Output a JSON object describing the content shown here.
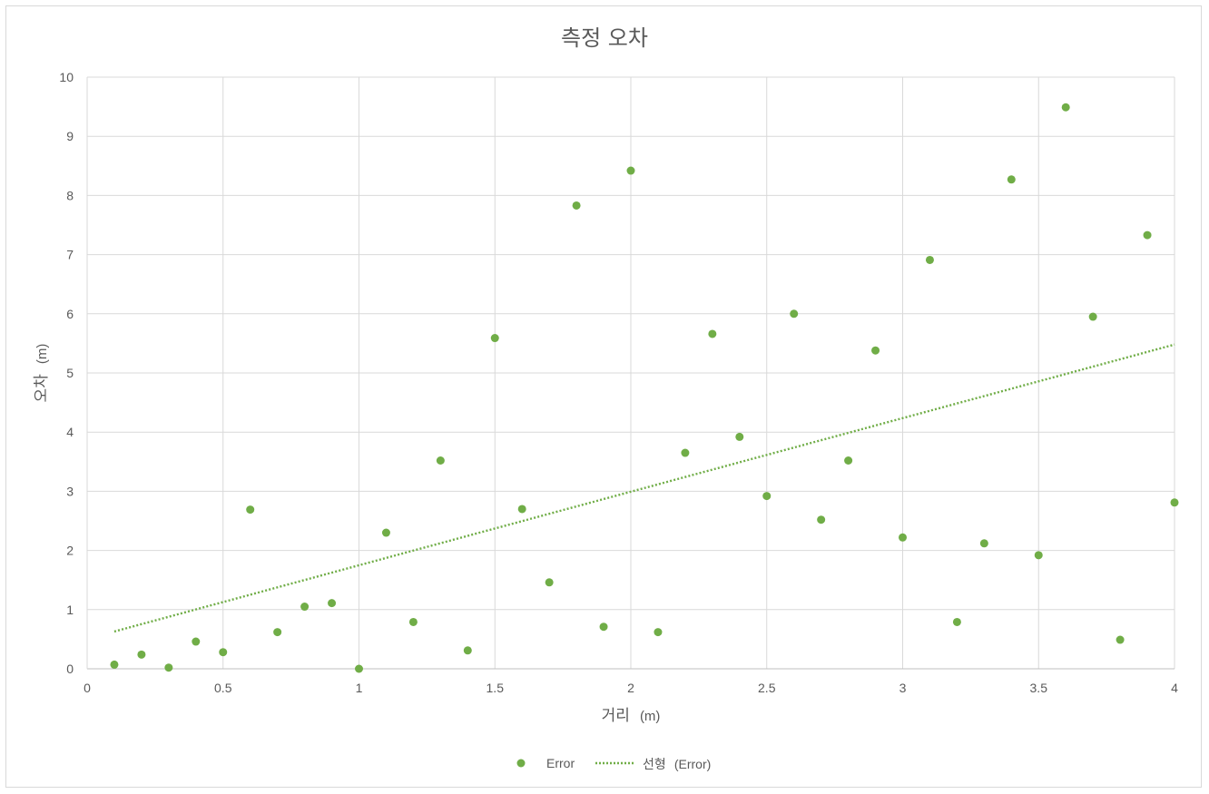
{
  "chart_data": {
    "type": "scatter",
    "title": "측정 오차",
    "xlabel": {
      "main": "거리",
      "unit": "(m)"
    },
    "ylabel": {
      "main": "오차",
      "unit": "(m)"
    },
    "xlim": [
      0,
      4
    ],
    "ylim": [
      0,
      10
    ],
    "x_ticks": [
      "0",
      "0.5",
      "1",
      "1.5",
      "2",
      "2.5",
      "3",
      "3.5",
      "4"
    ],
    "x_tick_values": [
      0,
      0.5,
      1,
      1.5,
      2,
      2.5,
      3,
      3.5,
      4
    ],
    "y_ticks": [
      "0",
      "1",
      "2",
      "3",
      "4",
      "5",
      "6",
      "7",
      "8",
      "9",
      "10"
    ],
    "y_tick_values": [
      0,
      1,
      2,
      3,
      4,
      5,
      6,
      7,
      8,
      9,
      10
    ],
    "grid": true,
    "legend_position": "bottom",
    "series": [
      {
        "name": "Error",
        "color": "#70ad47",
        "x": [
          0.1,
          0.2,
          0.3,
          0.4,
          0.5,
          0.6,
          0.7,
          0.8,
          0.9,
          1.0,
          1.1,
          1.2,
          1.3,
          1.4,
          1.5,
          1.6,
          1.7,
          1.8,
          1.9,
          2.0,
          2.1,
          2.2,
          2.3,
          2.4,
          2.5,
          2.6,
          2.7,
          2.8,
          2.9,
          3.0,
          3.1,
          3.2,
          3.3,
          3.4,
          3.5,
          3.6,
          3.7,
          3.8,
          3.9,
          4.0
        ],
        "y": [
          0.07,
          0.24,
          0.02,
          0.46,
          0.28,
          2.69,
          0.62,
          1.05,
          1.11,
          0.0,
          2.3,
          0.79,
          3.52,
          0.31,
          5.59,
          2.7,
          1.46,
          7.83,
          0.71,
          8.42,
          0.62,
          3.65,
          5.66,
          3.92,
          2.92,
          6.0,
          2.52,
          3.52,
          5.38,
          2.22,
          6.91,
          0.79,
          2.12,
          8.27,
          1.92,
          9.49,
          5.95,
          0.49,
          7.33,
          2.81
        ]
      }
    ],
    "trendline": {
      "name_prefix": "선형",
      "name_suffix": "(Error)",
      "type": "linear",
      "color": "#70ad47",
      "style": "dotted",
      "start": {
        "x": 0.1,
        "y": 0.63
      },
      "end": {
        "x": 4.0,
        "y": 5.48
      }
    },
    "legend": {
      "marker_label": "Error",
      "line_label_kor": "선형",
      "line_label_paren": "(Error)"
    }
  }
}
